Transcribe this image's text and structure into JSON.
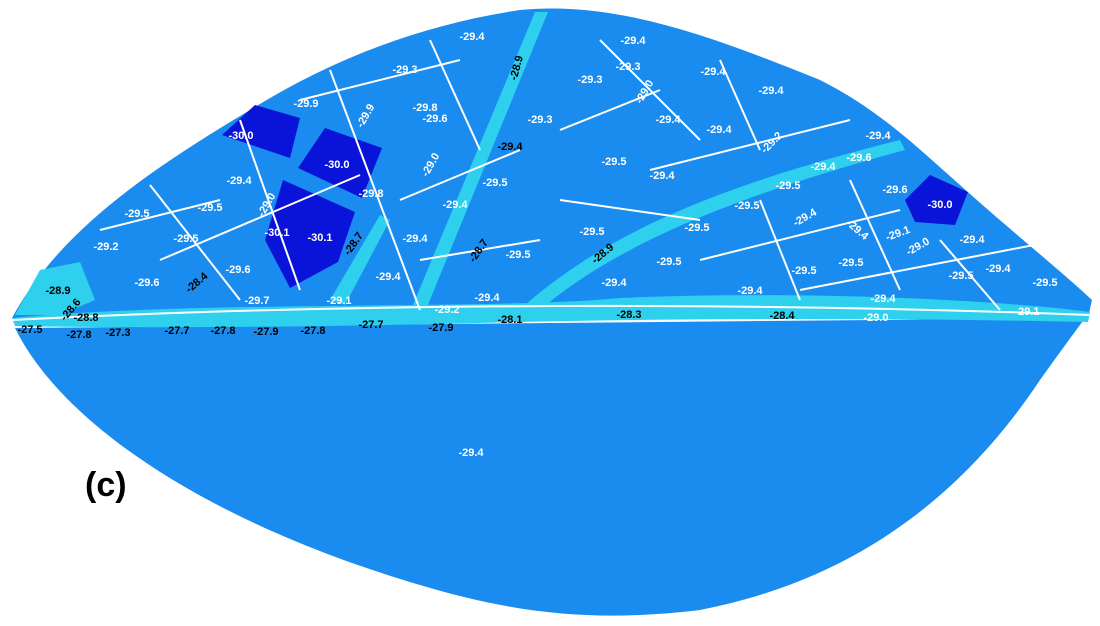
{
  "panel_label": "(c)",
  "regions": [
    "-29.4",
    "-29.4",
    "-28.9",
    "-29.3",
    "-29.3",
    "-29.4",
    "-29.3",
    "-29.0",
    "-29.4",
    "-29.9",
    "-29.9",
    "-29.8",
    "-30.0",
    "-29.6",
    "-29.3",
    "-29.4",
    "-29.4",
    "-29.2",
    "-29.4",
    "-29.4",
    "-30.0",
    "-29.6",
    "-29.0",
    "-29.5",
    "-29.4",
    "-29.4",
    "-29.5",
    "-29.4",
    "-29.5",
    "-29.6",
    "-30.0",
    "-29.8",
    "-29.5",
    "-29.5",
    "-29.0",
    "-29.4",
    "-29.5",
    "-29.4",
    "-29.4",
    "-29.5",
    "-30.1",
    "-30.1",
    "-28.7",
    "-29.4",
    "-29.5",
    "-29.5",
    "-29.1",
    "-29.4",
    "-29.2",
    "-28.7",
    "-29.5",
    "-28.9",
    "-29.0",
    "-29.6",
    "-28.4",
    "-29.6",
    "-29.4",
    "-29.5",
    "-29.5",
    "-29.5",
    "-29.5",
    "-29.4",
    "-29.5",
    "-28.9",
    "-28.6",
    "-29.4",
    "-29.7",
    "-29.1",
    "-29.4",
    "-29.4",
    "-29.4",
    "-28.8",
    "-29.2",
    "-28.3",
    "-28.4",
    "-29.0",
    "-29.1",
    "-27.5",
    "-27.8",
    "-27.3",
    "-27.7",
    "-27.8",
    "-27.9",
    "-27.8",
    "-27.7",
    "-27.9",
    "-28.1",
    "-29.4"
  ]
}
